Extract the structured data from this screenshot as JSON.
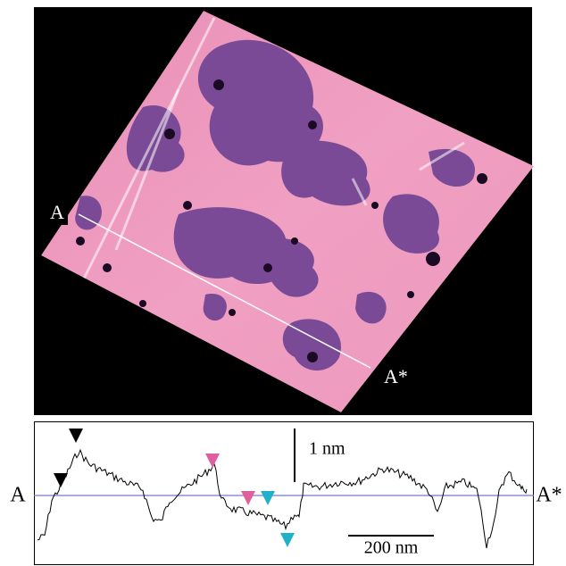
{
  "image": {
    "label_start": "A",
    "label_end": "A*"
  },
  "profile": {
    "label_start": "A",
    "label_end": "A*",
    "height_scale": "1 nm",
    "length_scale": "200 nm"
  }
}
